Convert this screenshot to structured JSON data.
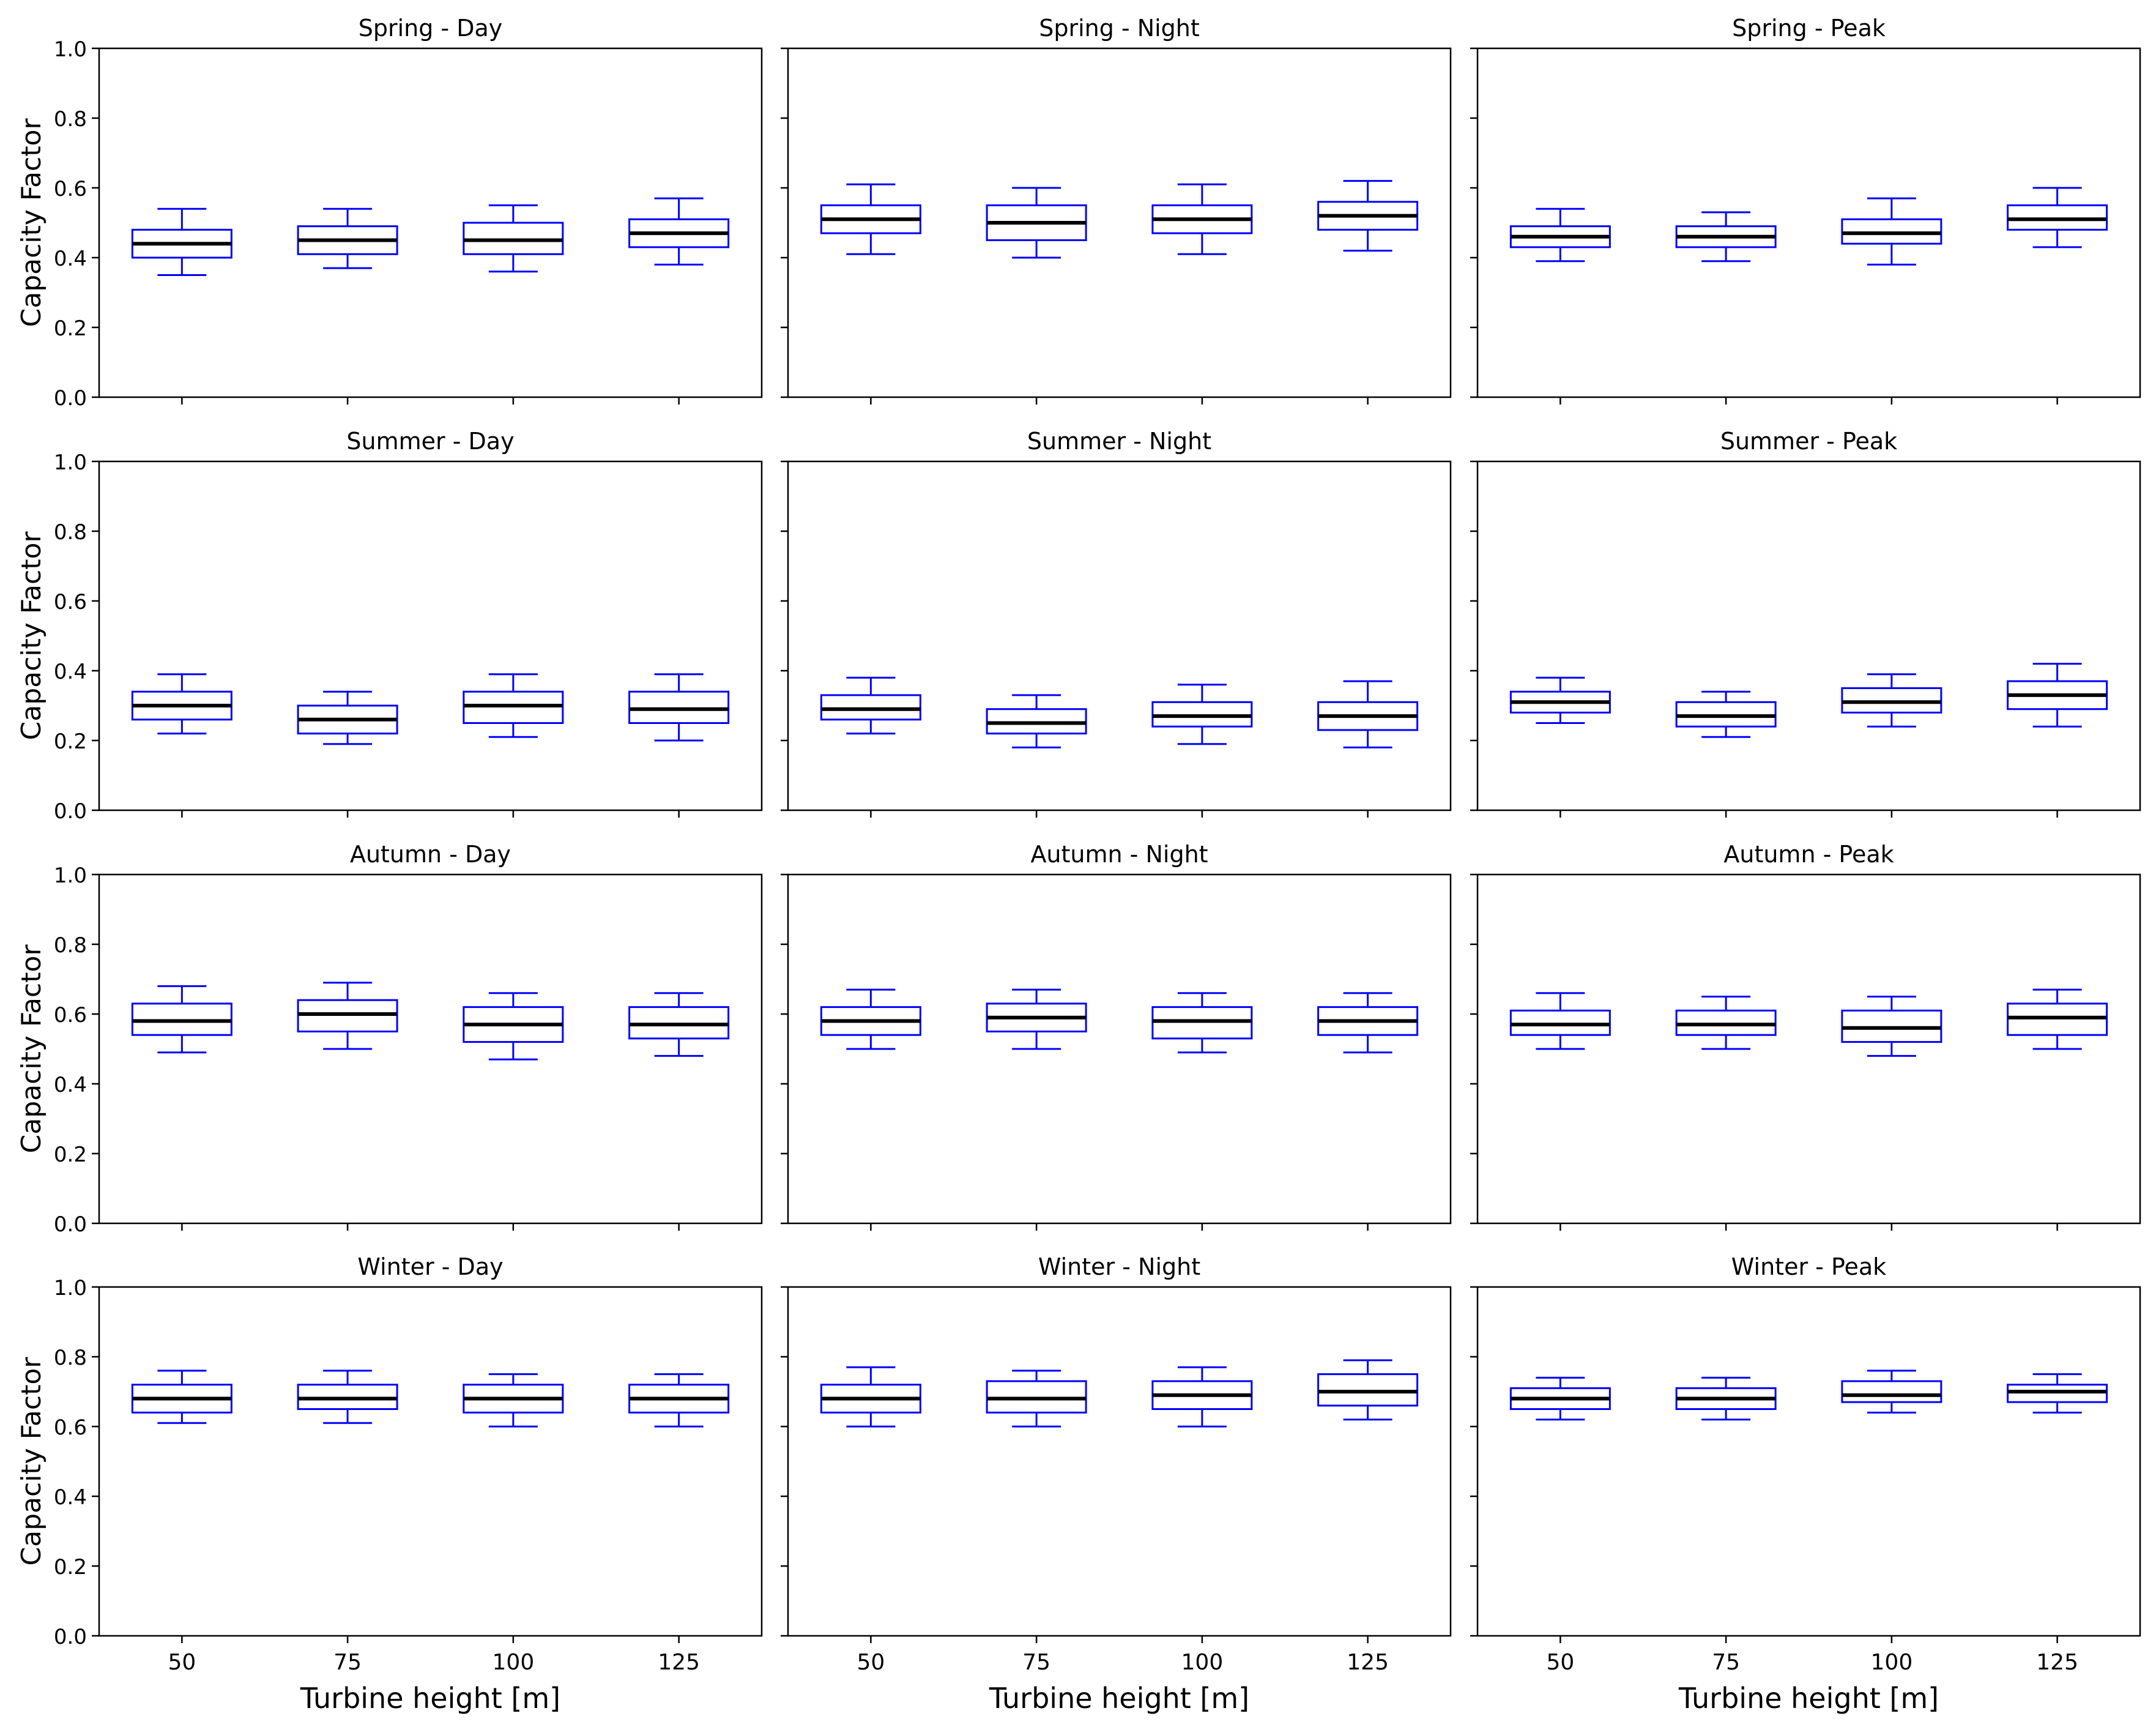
{
  "chart_data": {
    "type": "box",
    "ylabel": "Capacity Factor",
    "xlabel": "Turbine height [m]",
    "ylim": [
      0,
      1
    ],
    "yticks": [
      "0.0",
      "0.2",
      "0.4",
      "0.6",
      "0.8",
      "1.0"
    ],
    "categories": [
      "50",
      "75",
      "100",
      "125"
    ],
    "box_color": "#0000ff",
    "median_color": "#000000",
    "grid": false,
    "rows": [
      "Spring",
      "Summer",
      "Autumn",
      "Winter"
    ],
    "cols": [
      "Day",
      "Night",
      "Peak"
    ],
    "panels": [
      {
        "title": "Spring - Day",
        "boxes": [
          {
            "min": 0.35,
            "q1": 0.4,
            "median": 0.44,
            "q3": 0.48,
            "max": 0.54
          },
          {
            "min": 0.37,
            "q1": 0.41,
            "median": 0.45,
            "q3": 0.49,
            "max": 0.54
          },
          {
            "min": 0.36,
            "q1": 0.41,
            "median": 0.45,
            "q3": 0.5,
            "max": 0.55
          },
          {
            "min": 0.38,
            "q1": 0.43,
            "median": 0.47,
            "q3": 0.51,
            "max": 0.57
          }
        ]
      },
      {
        "title": "Spring - Night",
        "boxes": [
          {
            "min": 0.41,
            "q1": 0.47,
            "median": 0.51,
            "q3": 0.55,
            "max": 0.61
          },
          {
            "min": 0.4,
            "q1": 0.45,
            "median": 0.5,
            "q3": 0.55,
            "max": 0.6
          },
          {
            "min": 0.41,
            "q1": 0.47,
            "median": 0.51,
            "q3": 0.55,
            "max": 0.61
          },
          {
            "min": 0.42,
            "q1": 0.48,
            "median": 0.52,
            "q3": 0.56,
            "max": 0.62
          }
        ]
      },
      {
        "title": "Spring - Peak",
        "boxes": [
          {
            "min": 0.39,
            "q1": 0.43,
            "median": 0.46,
            "q3": 0.49,
            "max": 0.54
          },
          {
            "min": 0.39,
            "q1": 0.43,
            "median": 0.46,
            "q3": 0.49,
            "max": 0.53
          },
          {
            "min": 0.38,
            "q1": 0.44,
            "median": 0.47,
            "q3": 0.51,
            "max": 0.57
          },
          {
            "min": 0.43,
            "q1": 0.48,
            "median": 0.51,
            "q3": 0.55,
            "max": 0.6
          }
        ]
      },
      {
        "title": "Summer - Day",
        "boxes": [
          {
            "min": 0.22,
            "q1": 0.26,
            "median": 0.3,
            "q3": 0.34,
            "max": 0.39
          },
          {
            "min": 0.19,
            "q1": 0.22,
            "median": 0.26,
            "q3": 0.3,
            "max": 0.34
          },
          {
            "min": 0.21,
            "q1": 0.25,
            "median": 0.3,
            "q3": 0.34,
            "max": 0.39
          },
          {
            "min": 0.2,
            "q1": 0.25,
            "median": 0.29,
            "q3": 0.34,
            "max": 0.39
          }
        ]
      },
      {
        "title": "Summer - Night",
        "boxes": [
          {
            "min": 0.22,
            "q1": 0.26,
            "median": 0.29,
            "q3": 0.33,
            "max": 0.38
          },
          {
            "min": 0.18,
            "q1": 0.22,
            "median": 0.25,
            "q3": 0.29,
            "max": 0.33
          },
          {
            "min": 0.19,
            "q1": 0.24,
            "median": 0.27,
            "q3": 0.31,
            "max": 0.36
          },
          {
            "min": 0.18,
            "q1": 0.23,
            "median": 0.27,
            "q3": 0.31,
            "max": 0.37
          }
        ]
      },
      {
        "title": "Summer - Peak",
        "boxes": [
          {
            "min": 0.25,
            "q1": 0.28,
            "median": 0.31,
            "q3": 0.34,
            "max": 0.38
          },
          {
            "min": 0.21,
            "q1": 0.24,
            "median": 0.27,
            "q3": 0.31,
            "max": 0.34
          },
          {
            "min": 0.24,
            "q1": 0.28,
            "median": 0.31,
            "q3": 0.35,
            "max": 0.39
          },
          {
            "min": 0.24,
            "q1": 0.29,
            "median": 0.33,
            "q3": 0.37,
            "max": 0.42
          }
        ]
      },
      {
        "title": "Autumn - Day",
        "boxes": [
          {
            "min": 0.49,
            "q1": 0.54,
            "median": 0.58,
            "q3": 0.63,
            "max": 0.68
          },
          {
            "min": 0.5,
            "q1": 0.55,
            "median": 0.6,
            "q3": 0.64,
            "max": 0.69
          },
          {
            "min": 0.47,
            "q1": 0.52,
            "median": 0.57,
            "q3": 0.62,
            "max": 0.66
          },
          {
            "min": 0.48,
            "q1": 0.53,
            "median": 0.57,
            "q3": 0.62,
            "max": 0.66
          }
        ]
      },
      {
        "title": "Autumn - Night",
        "boxes": [
          {
            "min": 0.5,
            "q1": 0.54,
            "median": 0.58,
            "q3": 0.62,
            "max": 0.67
          },
          {
            "min": 0.5,
            "q1": 0.55,
            "median": 0.59,
            "q3": 0.63,
            "max": 0.67
          },
          {
            "min": 0.49,
            "q1": 0.53,
            "median": 0.58,
            "q3": 0.62,
            "max": 0.66
          },
          {
            "min": 0.49,
            "q1": 0.54,
            "median": 0.58,
            "q3": 0.62,
            "max": 0.66
          }
        ]
      },
      {
        "title": "Autumn - Peak",
        "boxes": [
          {
            "min": 0.5,
            "q1": 0.54,
            "median": 0.57,
            "q3": 0.61,
            "max": 0.66
          },
          {
            "min": 0.5,
            "q1": 0.54,
            "median": 0.57,
            "q3": 0.61,
            "max": 0.65
          },
          {
            "min": 0.48,
            "q1": 0.52,
            "median": 0.56,
            "q3": 0.61,
            "max": 0.65
          },
          {
            "min": 0.5,
            "q1": 0.54,
            "median": 0.59,
            "q3": 0.63,
            "max": 0.67
          }
        ]
      },
      {
        "title": "Winter - Day",
        "boxes": [
          {
            "min": 0.61,
            "q1": 0.64,
            "median": 0.68,
            "q3": 0.72,
            "max": 0.76
          },
          {
            "min": 0.61,
            "q1": 0.65,
            "median": 0.68,
            "q3": 0.72,
            "max": 0.76
          },
          {
            "min": 0.6,
            "q1": 0.64,
            "median": 0.68,
            "q3": 0.72,
            "max": 0.75
          },
          {
            "min": 0.6,
            "q1": 0.64,
            "median": 0.68,
            "q3": 0.72,
            "max": 0.75
          }
        ]
      },
      {
        "title": "Winter - Night",
        "boxes": [
          {
            "min": 0.6,
            "q1": 0.64,
            "median": 0.68,
            "q3": 0.72,
            "max": 0.77
          },
          {
            "min": 0.6,
            "q1": 0.64,
            "median": 0.68,
            "q3": 0.73,
            "max": 0.76
          },
          {
            "min": 0.6,
            "q1": 0.65,
            "median": 0.69,
            "q3": 0.73,
            "max": 0.77
          },
          {
            "min": 0.62,
            "q1": 0.66,
            "median": 0.7,
            "q3": 0.75,
            "max": 0.79
          }
        ]
      },
      {
        "title": "Winter - Peak",
        "boxes": [
          {
            "min": 0.62,
            "q1": 0.65,
            "median": 0.68,
            "q3": 0.71,
            "max": 0.74
          },
          {
            "min": 0.62,
            "q1": 0.65,
            "median": 0.68,
            "q3": 0.71,
            "max": 0.74
          },
          {
            "min": 0.64,
            "q1": 0.67,
            "median": 0.69,
            "q3": 0.73,
            "max": 0.76
          },
          {
            "min": 0.64,
            "q1": 0.67,
            "median": 0.7,
            "q3": 0.72,
            "max": 0.75
          }
        ]
      }
    ]
  }
}
